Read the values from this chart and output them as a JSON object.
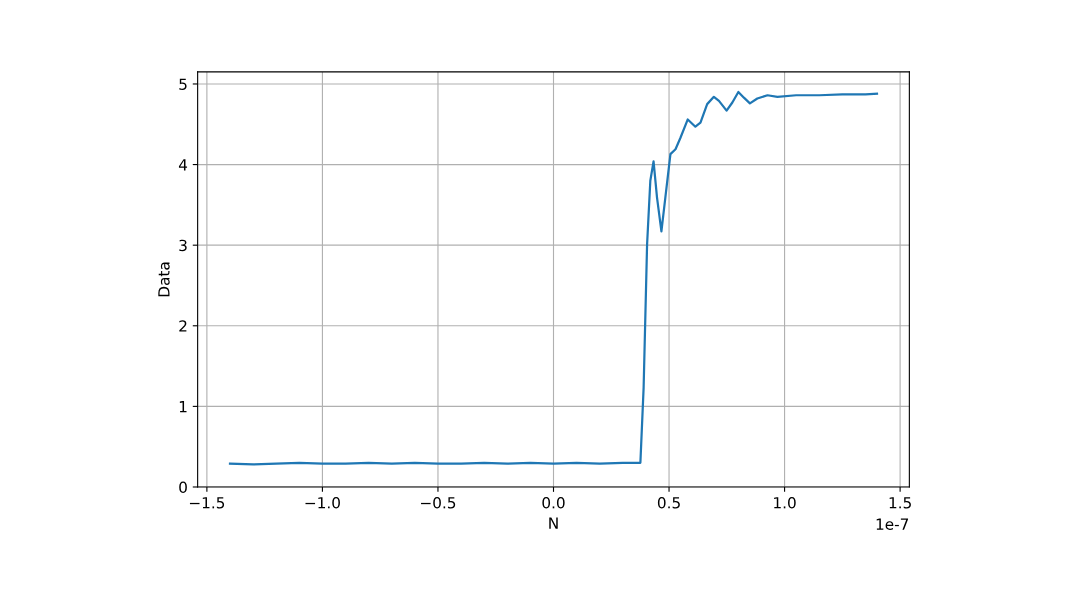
{
  "chart_data": {
    "type": "line",
    "xlabel": "N",
    "ylabel": "Data",
    "x": [
      -1.4,
      -1.3,
      -1.2,
      -1.1,
      -1.0,
      -0.9,
      -0.8,
      -0.7,
      -0.6,
      -0.5,
      -0.4,
      -0.3,
      -0.2,
      -0.1,
      0.0,
      0.1,
      0.2,
      0.3,
      0.376,
      0.39,
      0.405,
      0.419,
      0.433,
      0.448,
      0.467,
      0.484,
      0.506,
      0.528,
      0.549,
      0.581,
      0.614,
      0.636,
      0.665,
      0.694,
      0.716,
      0.749,
      0.774,
      0.8,
      0.824,
      0.85,
      0.882,
      0.926,
      0.969,
      1.05,
      1.15,
      1.25,
      1.35,
      1.4
    ],
    "series": [
      {
        "color": "#1f77b4",
        "values": [
          0.29,
          0.28,
          0.29,
          0.3,
          0.29,
          0.29,
          0.3,
          0.29,
          0.3,
          0.29,
          0.29,
          0.3,
          0.29,
          0.3,
          0.29,
          0.3,
          0.29,
          0.3,
          0.3,
          1.23,
          3.01,
          3.8,
          4.04,
          3.59,
          3.17,
          3.59,
          4.13,
          4.19,
          4.33,
          4.56,
          4.47,
          4.52,
          4.75,
          4.84,
          4.79,
          4.67,
          4.77,
          4.9,
          4.83,
          4.76,
          4.82,
          4.86,
          4.84,
          4.86,
          4.86,
          4.87,
          4.87,
          4.88
        ]
      }
    ],
    "xlim": [
      -1.54,
      1.54
    ],
    "xticks": [
      {
        "value": -1.5,
        "label": "−1.5"
      },
      {
        "value": -1.0,
        "label": "−1.0"
      },
      {
        "value": -0.5,
        "label": "−0.5"
      },
      {
        "value": 0,
        "label": "0.0"
      },
      0.5,
      {
        "value": 1,
        "label": "1.0"
      },
      1.5
    ],
    "ylim": [
      0,
      5.15
    ],
    "yticks": [
      0,
      1,
      2,
      3,
      4,
      5
    ],
    "grid": true,
    "marker": "none",
    "line_style": "solid",
    "annotations": [
      "1e-7"
    ]
  }
}
